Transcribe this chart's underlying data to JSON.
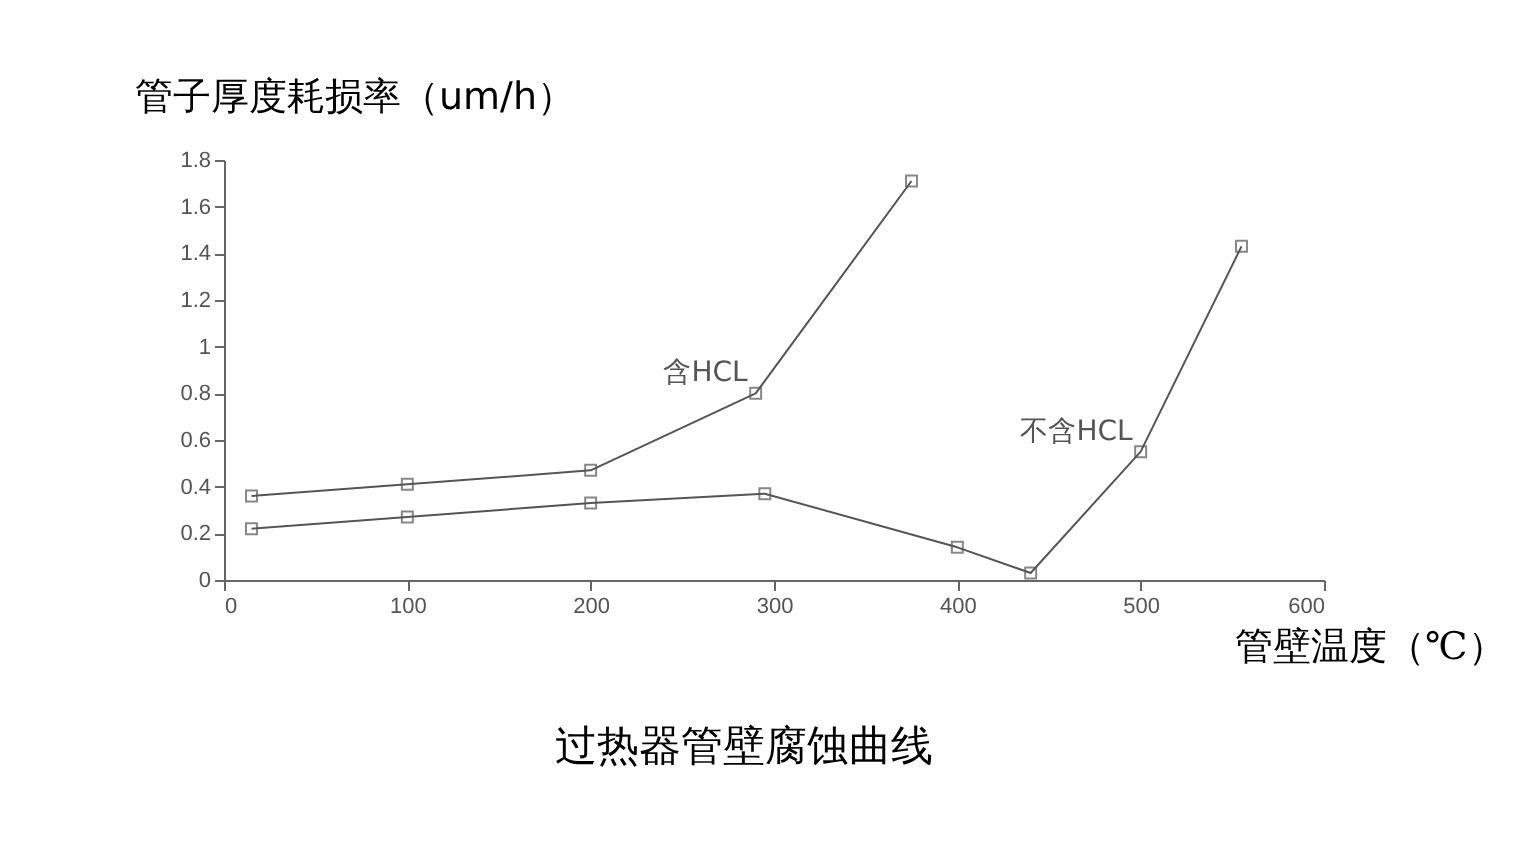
{
  "chart_data": {
    "type": "line",
    "title": "过热器管壁腐蚀曲线",
    "xlabel": "管壁温度（℃）",
    "ylabel": "管子厚度耗损率（um/h）",
    "xlim": [
      0,
      600
    ],
    "xticks": [
      0,
      100,
      200,
      300,
      400,
      500,
      600
    ],
    "ylim": [
      0,
      1.8
    ],
    "yticks": [
      0,
      0.2,
      0.4,
      0.6,
      0.8,
      1,
      1.2,
      1.4,
      1.6,
      1.8
    ],
    "grid": false,
    "legend": false,
    "marker": "square",
    "line_style": "solid",
    "series": [
      {
        "name": "含HCL",
        "color": "#555555",
        "x": [
          15,
          100,
          200,
          290,
          375
        ],
        "values": [
          0.36,
          0.41,
          0.47,
          0.8,
          1.71
        ]
      },
      {
        "name": "不含HCL",
        "color": "#555555",
        "x": [
          15,
          100,
          200,
          295,
          400,
          440,
          500,
          555
        ],
        "values": [
          0.22,
          0.27,
          0.33,
          0.37,
          0.14,
          0.03,
          0.55,
          1.43
        ]
      }
    ]
  }
}
